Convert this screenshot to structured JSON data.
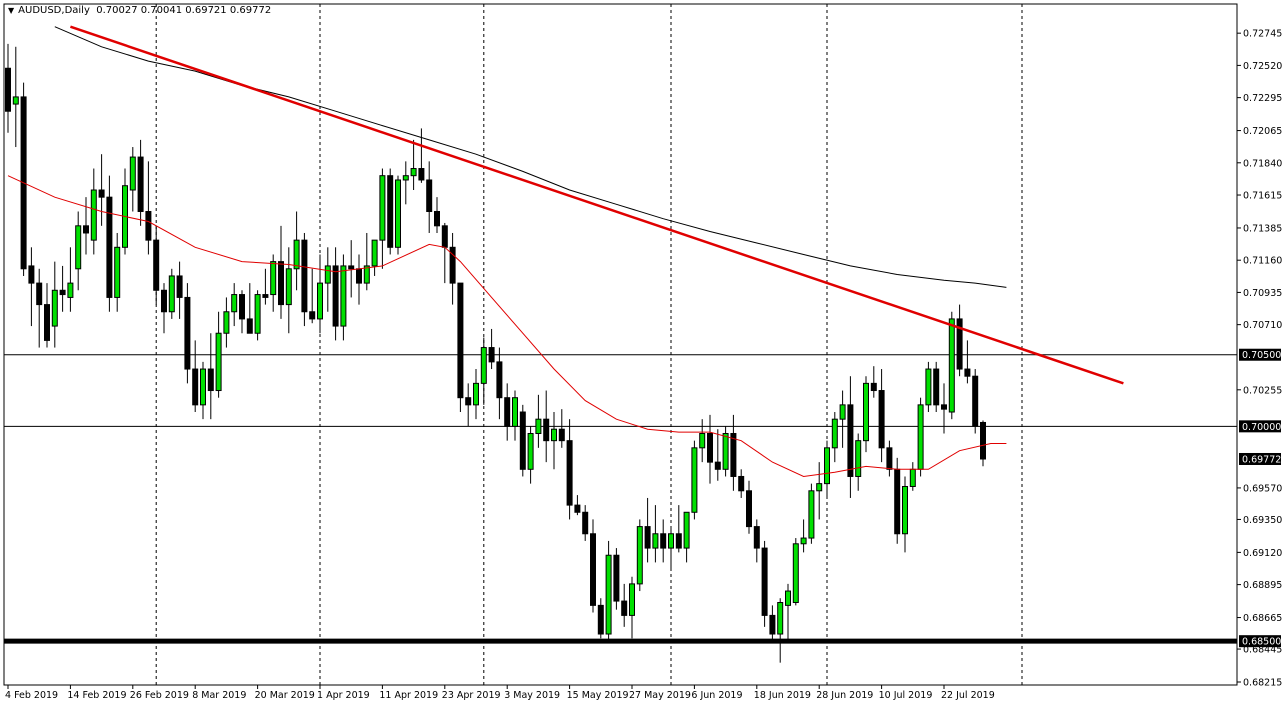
{
  "header": {
    "symbol": "AUDUSD,Daily",
    "ohlc": "0.70027 0.70041 0.69721 0.69772"
  },
  "colors": {
    "background": "#ffffff",
    "bull_body": "#00e000",
    "bear_body": "#000000",
    "wick": "#000000",
    "ma_slow": "#000000",
    "ma_fast": "#e00000",
    "trendline": "#e00000",
    "hline": "#000000",
    "label_bg": "#000000",
    "label_text": "#ffffff"
  },
  "chart_data": {
    "type": "candlestick",
    "title": "",
    "xlabel": "",
    "ylabel": "",
    "ylim": [
      0.68215,
      0.7283
    ],
    "grid": "vertical dashed separators",
    "y_ticks": [
      "0.72745",
      "0.72520",
      "0.72295",
      "0.72065",
      "0.71840",
      "0.71615",
      "0.71385",
      "0.71160",
      "0.70935",
      "0.70710",
      "0.70255",
      "0.69570",
      "0.69350",
      "0.69120",
      "0.68895",
      "0.68665",
      "0.68445",
      "0.68215"
    ],
    "x_ticks": [
      {
        "i": 0,
        "label": "4 Feb 2019"
      },
      {
        "i": 8,
        "label": "14 Feb 2019"
      },
      {
        "i": 16,
        "label": "26 Feb 2019"
      },
      {
        "i": 24,
        "label": "8 Mar 2019"
      },
      {
        "i": 32,
        "label": "20 Mar 2019"
      },
      {
        "i": 40,
        "label": "1 Apr 2019"
      },
      {
        "i": 48,
        "label": "11 Apr 2019"
      },
      {
        "i": 56,
        "label": "23 Apr 2019"
      },
      {
        "i": 64,
        "label": "3 May 2019"
      },
      {
        "i": 72,
        "label": "15 May 2019"
      },
      {
        "i": 80,
        "label": "27 May 2019"
      },
      {
        "i": 88,
        "label": "6 Jun 2019"
      },
      {
        "i": 96,
        "label": "18 Jun 2019"
      },
      {
        "i": 104,
        "label": "28 Jun 2019"
      },
      {
        "i": 112,
        "label": "10 Jul 2019"
      },
      {
        "i": 120,
        "label": "22 Jul 2019"
      }
    ],
    "separators": [
      19,
      40,
      61,
      85,
      105,
      130
    ],
    "price_labels": [
      {
        "value": 0.705,
        "text": "0.70500"
      },
      {
        "value": 0.7,
        "text": "0.70000"
      },
      {
        "value": 0.69772,
        "text": "0.69772"
      },
      {
        "value": 0.685,
        "text": "0.68500"
      }
    ],
    "horizontal_lines": [
      {
        "value": 0.705,
        "width": 1
      },
      {
        "value": 0.7,
        "width": 1
      },
      {
        "value": 0.685,
        "width": 5
      }
    ],
    "trendline": {
      "start": {
        "i": 8,
        "value": 0.7279
      },
      "end": {
        "i": 143,
        "value": 0.703
      }
    },
    "candles": [
      {
        "o": 0.725,
        "h": 0.7267,
        "l": 0.7205,
        "c": 0.722
      },
      {
        "o": 0.7225,
        "h": 0.7265,
        "l": 0.7195,
        "c": 0.723
      },
      {
        "o": 0.723,
        "h": 0.724,
        "l": 0.7105,
        "c": 0.711
      },
      {
        "o": 0.7112,
        "h": 0.7125,
        "l": 0.707,
        "c": 0.71
      },
      {
        "o": 0.71,
        "h": 0.711,
        "l": 0.7055,
        "c": 0.7085
      },
      {
        "o": 0.7085,
        "h": 0.71,
        "l": 0.7055,
        "c": 0.706
      },
      {
        "o": 0.707,
        "h": 0.7115,
        "l": 0.7055,
        "c": 0.7095
      },
      {
        "o": 0.7095,
        "h": 0.7112,
        "l": 0.708,
        "c": 0.7092
      },
      {
        "o": 0.709,
        "h": 0.7125,
        "l": 0.708,
        "c": 0.71
      },
      {
        "o": 0.711,
        "h": 0.715,
        "l": 0.7095,
        "c": 0.714
      },
      {
        "o": 0.714,
        "h": 0.716,
        "l": 0.712,
        "c": 0.7135
      },
      {
        "o": 0.713,
        "h": 0.718,
        "l": 0.712,
        "c": 0.7165
      },
      {
        "o": 0.7165,
        "h": 0.719,
        "l": 0.714,
        "c": 0.716
      },
      {
        "o": 0.716,
        "h": 0.7175,
        "l": 0.708,
        "c": 0.709
      },
      {
        "o": 0.709,
        "h": 0.7135,
        "l": 0.708,
        "c": 0.7125
      },
      {
        "o": 0.7125,
        "h": 0.718,
        "l": 0.712,
        "c": 0.7168
      },
      {
        "o": 0.7165,
        "h": 0.7195,
        "l": 0.715,
        "c": 0.7188
      },
      {
        "o": 0.7188,
        "h": 0.72,
        "l": 0.714,
        "c": 0.715
      },
      {
        "o": 0.715,
        "h": 0.7185,
        "l": 0.712,
        "c": 0.713
      },
      {
        "o": 0.713,
        "h": 0.714,
        "l": 0.7085,
        "c": 0.7095
      },
      {
        "o": 0.7095,
        "h": 0.71,
        "l": 0.7065,
        "c": 0.708
      },
      {
        "o": 0.708,
        "h": 0.711,
        "l": 0.7075,
        "c": 0.7105
      },
      {
        "o": 0.7105,
        "h": 0.7115,
        "l": 0.7075,
        "c": 0.709
      },
      {
        "o": 0.709,
        "h": 0.71,
        "l": 0.703,
        "c": 0.704
      },
      {
        "o": 0.704,
        "h": 0.706,
        "l": 0.701,
        "c": 0.7015
      },
      {
        "o": 0.7015,
        "h": 0.7045,
        "l": 0.7005,
        "c": 0.704
      },
      {
        "o": 0.704,
        "h": 0.7065,
        "l": 0.7005,
        "c": 0.7025
      },
      {
        "o": 0.7025,
        "h": 0.708,
        "l": 0.702,
        "c": 0.7065
      },
      {
        "o": 0.7065,
        "h": 0.709,
        "l": 0.7055,
        "c": 0.708
      },
      {
        "o": 0.708,
        "h": 0.71,
        "l": 0.707,
        "c": 0.7092
      },
      {
        "o": 0.7092,
        "h": 0.7095,
        "l": 0.7065,
        "c": 0.7075
      },
      {
        "o": 0.7075,
        "h": 0.71,
        "l": 0.7065,
        "c": 0.7065
      },
      {
        "o": 0.7065,
        "h": 0.7095,
        "l": 0.706,
        "c": 0.7092
      },
      {
        "o": 0.7092,
        "h": 0.711,
        "l": 0.7085,
        "c": 0.709
      },
      {
        "o": 0.7092,
        "h": 0.712,
        "l": 0.708,
        "c": 0.7115
      },
      {
        "o": 0.7115,
        "h": 0.714,
        "l": 0.7075,
        "c": 0.7085
      },
      {
        "o": 0.7085,
        "h": 0.7125,
        "l": 0.7065,
        "c": 0.711
      },
      {
        "o": 0.711,
        "h": 0.715,
        "l": 0.7095,
        "c": 0.713
      },
      {
        "o": 0.713,
        "h": 0.7135,
        "l": 0.707,
        "c": 0.708
      },
      {
        "o": 0.708,
        "h": 0.711,
        "l": 0.7072,
        "c": 0.7075
      },
      {
        "o": 0.7075,
        "h": 0.712,
        "l": 0.7065,
        "c": 0.71
      },
      {
        "o": 0.71,
        "h": 0.7125,
        "l": 0.708,
        "c": 0.7112
      },
      {
        "o": 0.7112,
        "h": 0.7125,
        "l": 0.706,
        "c": 0.707
      },
      {
        "o": 0.707,
        "h": 0.712,
        "l": 0.706,
        "c": 0.7112
      },
      {
        "o": 0.7112,
        "h": 0.713,
        "l": 0.709,
        "c": 0.711
      },
      {
        "o": 0.711,
        "h": 0.712,
        "l": 0.7085,
        "c": 0.71
      },
      {
        "o": 0.71,
        "h": 0.7135,
        "l": 0.7095,
        "c": 0.7112
      },
      {
        "o": 0.7112,
        "h": 0.713,
        "l": 0.7105,
        "c": 0.713
      },
      {
        "o": 0.713,
        "h": 0.718,
        "l": 0.711,
        "c": 0.7175
      },
      {
        "o": 0.7175,
        "h": 0.718,
        "l": 0.712,
        "c": 0.7125
      },
      {
        "o": 0.7125,
        "h": 0.7175,
        "l": 0.712,
        "c": 0.7172
      },
      {
        "o": 0.7172,
        "h": 0.7185,
        "l": 0.7155,
        "c": 0.7175
      },
      {
        "o": 0.7175,
        "h": 0.72,
        "l": 0.7165,
        "c": 0.718
      },
      {
        "o": 0.718,
        "h": 0.7208,
        "l": 0.717,
        "c": 0.7172
      },
      {
        "o": 0.7172,
        "h": 0.7185,
        "l": 0.7135,
        "c": 0.715
      },
      {
        "o": 0.715,
        "h": 0.716,
        "l": 0.7135,
        "c": 0.714
      },
      {
        "o": 0.714,
        "h": 0.7142,
        "l": 0.71,
        "c": 0.7125
      },
      {
        "o": 0.7125,
        "h": 0.7135,
        "l": 0.7085,
        "c": 0.71
      },
      {
        "o": 0.71,
        "h": 0.71,
        "l": 0.701,
        "c": 0.702
      },
      {
        "o": 0.702,
        "h": 0.703,
        "l": 0.7,
        "c": 0.7015
      },
      {
        "o": 0.7015,
        "h": 0.704,
        "l": 0.7005,
        "c": 0.703
      },
      {
        "o": 0.703,
        "h": 0.7062,
        "l": 0.7015,
        "c": 0.7055
      },
      {
        "o": 0.7055,
        "h": 0.7068,
        "l": 0.704,
        "c": 0.7045
      },
      {
        "o": 0.7045,
        "h": 0.7055,
        "l": 0.7005,
        "c": 0.702
      },
      {
        "o": 0.702,
        "h": 0.703,
        "l": 0.699,
        "c": 0.7
      },
      {
        "o": 0.7,
        "h": 0.7025,
        "l": 0.699,
        "c": 0.702
      },
      {
        "o": 0.701,
        "h": 0.7015,
        "l": 0.6965,
        "c": 0.697
      },
      {
        "o": 0.697,
        "h": 0.7,
        "l": 0.696,
        "c": 0.6995
      },
      {
        "o": 0.6995,
        "h": 0.7022,
        "l": 0.6985,
        "c": 0.7005
      },
      {
        "o": 0.7005,
        "h": 0.7025,
        "l": 0.6975,
        "c": 0.699
      },
      {
        "o": 0.699,
        "h": 0.701,
        "l": 0.697,
        "c": 0.6998
      },
      {
        "o": 0.6998,
        "h": 0.7012,
        "l": 0.6985,
        "c": 0.699
      },
      {
        "o": 0.699,
        "h": 0.7005,
        "l": 0.6935,
        "c": 0.6945
      },
      {
        "o": 0.6945,
        "h": 0.6952,
        "l": 0.6938,
        "c": 0.694
      },
      {
        "o": 0.694,
        "h": 0.6945,
        "l": 0.692,
        "c": 0.6925
      },
      {
        "o": 0.6925,
        "h": 0.6935,
        "l": 0.687,
        "c": 0.6875
      },
      {
        "o": 0.6875,
        "h": 0.688,
        "l": 0.6852,
        "c": 0.6855
      },
      {
        "o": 0.6855,
        "h": 0.692,
        "l": 0.685,
        "c": 0.691
      },
      {
        "o": 0.691,
        "h": 0.6915,
        "l": 0.6872,
        "c": 0.6878
      },
      {
        "o": 0.6878,
        "h": 0.689,
        "l": 0.686,
        "c": 0.6868
      },
      {
        "o": 0.6868,
        "h": 0.6895,
        "l": 0.6852,
        "c": 0.689
      },
      {
        "o": 0.689,
        "h": 0.6935,
        "l": 0.6885,
        "c": 0.693
      },
      {
        "o": 0.693,
        "h": 0.695,
        "l": 0.6905,
        "c": 0.6915
      },
      {
        "o": 0.6915,
        "h": 0.6945,
        "l": 0.6905,
        "c": 0.6925
      },
      {
        "o": 0.6925,
        "h": 0.6935,
        "l": 0.6905,
        "c": 0.6915
      },
      {
        "o": 0.6915,
        "h": 0.693,
        "l": 0.69,
        "c": 0.6925
      },
      {
        "o": 0.6925,
        "h": 0.6945,
        "l": 0.6912,
        "c": 0.6915
      },
      {
        "o": 0.6915,
        "h": 0.694,
        "l": 0.6905,
        "c": 0.694
      },
      {
        "o": 0.694,
        "h": 0.699,
        "l": 0.6935,
        "c": 0.6985
      },
      {
        "o": 0.6985,
        "h": 0.7005,
        "l": 0.6975,
        "c": 0.6995
      },
      {
        "o": 0.6995,
        "h": 0.7008,
        "l": 0.696,
        "c": 0.6975
      },
      {
        "o": 0.6975,
        "h": 0.6998,
        "l": 0.6962,
        "c": 0.697
      },
      {
        "o": 0.697,
        "h": 0.7,
        "l": 0.6965,
        "c": 0.6995
      },
      {
        "o": 0.6995,
        "h": 0.7008,
        "l": 0.6955,
        "c": 0.6965
      },
      {
        "o": 0.6965,
        "h": 0.697,
        "l": 0.695,
        "c": 0.6955
      },
      {
        "o": 0.6955,
        "h": 0.6962,
        "l": 0.6925,
        "c": 0.693
      },
      {
        "o": 0.693,
        "h": 0.6935,
        "l": 0.6905,
        "c": 0.6915
      },
      {
        "o": 0.6915,
        "h": 0.692,
        "l": 0.686,
        "c": 0.6868
      },
      {
        "o": 0.6868,
        "h": 0.6875,
        "l": 0.685,
        "c": 0.6855
      },
      {
        "o": 0.6855,
        "h": 0.688,
        "l": 0.6835,
        "c": 0.6877
      },
      {
        "o": 0.6875,
        "h": 0.689,
        "l": 0.685,
        "c": 0.6885
      },
      {
        "o": 0.6877,
        "h": 0.6922,
        "l": 0.6875,
        "c": 0.6918
      },
      {
        "o": 0.6918,
        "h": 0.6935,
        "l": 0.6912,
        "c": 0.6922
      },
      {
        "o": 0.6922,
        "h": 0.696,
        "l": 0.6918,
        "c": 0.6955
      },
      {
        "o": 0.6955,
        "h": 0.6975,
        "l": 0.6935,
        "c": 0.696
      },
      {
        "o": 0.696,
        "h": 0.699,
        "l": 0.695,
        "c": 0.6985
      },
      {
        "o": 0.6985,
        "h": 0.701,
        "l": 0.6975,
        "c": 0.7005
      },
      {
        "o": 0.7005,
        "h": 0.7025,
        "l": 0.6985,
        "c": 0.7015
      },
      {
        "o": 0.7015,
        "h": 0.7035,
        "l": 0.695,
        "c": 0.6965
      },
      {
        "o": 0.6965,
        "h": 0.6995,
        "l": 0.6955,
        "c": 0.699
      },
      {
        "o": 0.699,
        "h": 0.7035,
        "l": 0.6982,
        "c": 0.703
      },
      {
        "o": 0.703,
        "h": 0.7042,
        "l": 0.702,
        "c": 0.7025
      },
      {
        "o": 0.7025,
        "h": 0.704,
        "l": 0.6975,
        "c": 0.6985
      },
      {
        "o": 0.6985,
        "h": 0.699,
        "l": 0.6965,
        "c": 0.697
      },
      {
        "o": 0.697,
        "h": 0.6978,
        "l": 0.6918,
        "c": 0.6925
      },
      {
        "o": 0.6925,
        "h": 0.6965,
        "l": 0.6912,
        "c": 0.6958
      },
      {
        "o": 0.6958,
        "h": 0.6975,
        "l": 0.6955,
        "c": 0.697
      },
      {
        "o": 0.697,
        "h": 0.702,
        "l": 0.6965,
        "c": 0.7015
      },
      {
        "o": 0.7015,
        "h": 0.7045,
        "l": 0.701,
        "c": 0.704
      },
      {
        "o": 0.704,
        "h": 0.7045,
        "l": 0.701,
        "c": 0.7015
      },
      {
        "o": 0.7015,
        "h": 0.703,
        "l": 0.6995,
        "c": 0.7012
      },
      {
        "o": 0.701,
        "h": 0.708,
        "l": 0.7005,
        "c": 0.7075
      },
      {
        "o": 0.7075,
        "h": 0.7085,
        "l": 0.7035,
        "c": 0.704
      },
      {
        "o": 0.704,
        "h": 0.706,
        "l": 0.703,
        "c": 0.7035
      },
      {
        "o": 0.7035,
        "h": 0.704,
        "l": 0.6995,
        "c": 0.7
      },
      {
        "o": 0.70027,
        "h": 0.70041,
        "l": 0.69721,
        "c": 0.69772
      }
    ],
    "ma_fast": [
      {
        "i": 0,
        "v": 0.7175
      },
      {
        "i": 6,
        "v": 0.716
      },
      {
        "i": 12,
        "v": 0.715
      },
      {
        "i": 18,
        "v": 0.7143
      },
      {
        "i": 24,
        "v": 0.7125
      },
      {
        "i": 30,
        "v": 0.7115
      },
      {
        "i": 36,
        "v": 0.7113
      },
      {
        "i": 42,
        "v": 0.7108
      },
      {
        "i": 48,
        "v": 0.7112
      },
      {
        "i": 54,
        "v": 0.7127
      },
      {
        "i": 56,
        "v": 0.7125
      },
      {
        "i": 58,
        "v": 0.7115
      },
      {
        "i": 62,
        "v": 0.709
      },
      {
        "i": 66,
        "v": 0.7065
      },
      {
        "i": 70,
        "v": 0.704
      },
      {
        "i": 74,
        "v": 0.7018
      },
      {
        "i": 78,
        "v": 0.7005
      },
      {
        "i": 82,
        "v": 0.6998
      },
      {
        "i": 86,
        "v": 0.6996
      },
      {
        "i": 90,
        "v": 0.6996
      },
      {
        "i": 94,
        "v": 0.699
      },
      {
        "i": 98,
        "v": 0.6975
      },
      {
        "i": 102,
        "v": 0.6965
      },
      {
        "i": 106,
        "v": 0.6968
      },
      {
        "i": 110,
        "v": 0.6972
      },
      {
        "i": 114,
        "v": 0.697
      },
      {
        "i": 118,
        "v": 0.697
      },
      {
        "i": 122,
        "v": 0.6983
      },
      {
        "i": 126,
        "v": 0.6988
      },
      {
        "i": 128,
        "v": 0.6988
      }
    ],
    "ma_slow": [
      {
        "i": 6,
        "v": 0.7279
      },
      {
        "i": 12,
        "v": 0.7265
      },
      {
        "i": 18,
        "v": 0.7255
      },
      {
        "i": 24,
        "v": 0.7248
      },
      {
        "i": 30,
        "v": 0.7238
      },
      {
        "i": 36,
        "v": 0.723
      },
      {
        "i": 42,
        "v": 0.722
      },
      {
        "i": 48,
        "v": 0.721
      },
      {
        "i": 54,
        "v": 0.72
      },
      {
        "i": 60,
        "v": 0.719
      },
      {
        "i": 66,
        "v": 0.7178
      },
      {
        "i": 72,
        "v": 0.7165
      },
      {
        "i": 78,
        "v": 0.7155
      },
      {
        "i": 84,
        "v": 0.7145
      },
      {
        "i": 90,
        "v": 0.7136
      },
      {
        "i": 96,
        "v": 0.7128
      },
      {
        "i": 102,
        "v": 0.712
      },
      {
        "i": 108,
        "v": 0.7112
      },
      {
        "i": 114,
        "v": 0.7106
      },
      {
        "i": 120,
        "v": 0.7102
      },
      {
        "i": 124,
        "v": 0.71
      },
      {
        "i": 128,
        "v": 0.7097
      }
    ]
  }
}
